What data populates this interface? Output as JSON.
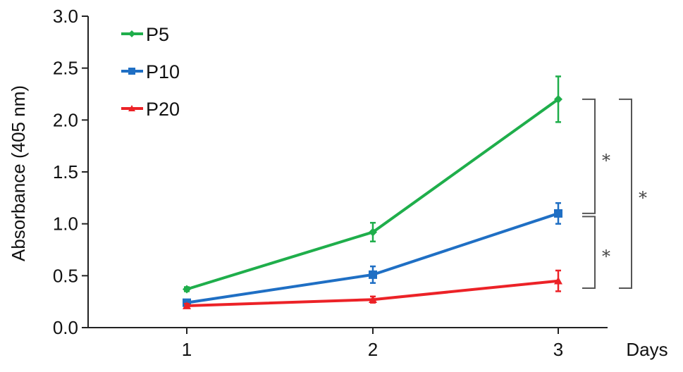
{
  "chart_data": {
    "type": "line",
    "title": "",
    "xlabel": "Days",
    "ylabel": "Absorbance (405 nm)",
    "x": [
      1,
      2,
      3
    ],
    "x_tick_labels": [
      "1",
      "2",
      "3"
    ],
    "ylim": [
      0,
      3.0
    ],
    "y_ticks": [
      0.0,
      0.5,
      1.0,
      1.5,
      2.0,
      2.5,
      3.0
    ],
    "y_tick_labels": [
      "0.0",
      "0.5",
      "1.0",
      "1.5",
      "2.0",
      "2.5",
      "3.0"
    ],
    "grid": false,
    "legend_position": "top-left",
    "series": [
      {
        "name": "P5",
        "color": "#1fae4b",
        "marker": "diamond",
        "values": [
          0.37,
          0.92,
          2.2
        ],
        "errors": [
          0.02,
          0.09,
          0.22
        ]
      },
      {
        "name": "P10",
        "color": "#1f6fc4",
        "marker": "square",
        "values": [
          0.24,
          0.51,
          1.1
        ],
        "errors": [
          0.02,
          0.08,
          0.1
        ]
      },
      {
        "name": "P20",
        "color": "#ec2227",
        "marker": "triangle",
        "values": [
          0.21,
          0.27,
          0.45
        ],
        "errors": [
          0.02,
          0.03,
          0.1
        ]
      }
    ],
    "annotations": [
      {
        "label": "*",
        "from": 1.1,
        "to": 2.2
      },
      {
        "label": "*",
        "from": 0.38,
        "to": 1.07
      },
      {
        "label": "*",
        "from": 0.38,
        "to": 2.2
      }
    ]
  }
}
